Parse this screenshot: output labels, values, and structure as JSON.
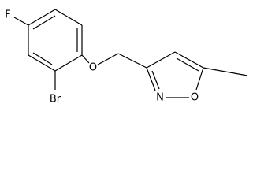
{
  "atom_labels": [
    "F",
    "Br",
    "O",
    "N",
    "O"
  ]
}
